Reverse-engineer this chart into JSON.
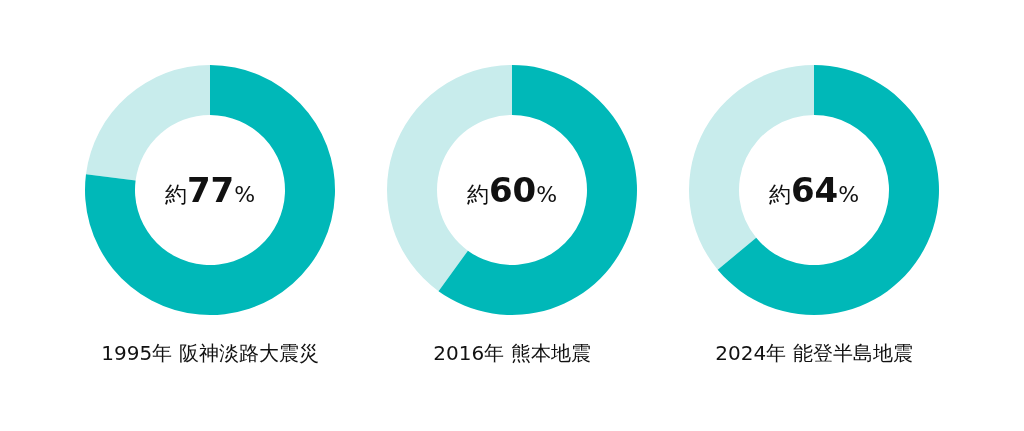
{
  "chart_data": [
    {
      "type": "donut",
      "title": "1995年 阪神淡路大震災",
      "categories": [
        null,
        null
      ],
      "values": [
        77,
        23
      ],
      "colors": [
        "#00b8b8",
        "#c8ecec"
      ],
      "annotations": [
        "約77%"
      ]
    },
    {
      "type": "donut",
      "title": "2016年 熊本地震",
      "categories": [
        null,
        null
      ],
      "values": [
        60,
        40
      ],
      "colors": [
        "#00b8b8",
        "#c8ecec"
      ],
      "annotations": [
        "約60%"
      ]
    },
    {
      "type": "donut",
      "title": "2024年 能登半島地震",
      "categories": [
        null,
        null
      ],
      "values": [
        64,
        36
      ],
      "colors": [
        "#00b8b8",
        "#c8ecec"
      ],
      "annotations": [
        "約64%"
      ]
    }
  ]
}
